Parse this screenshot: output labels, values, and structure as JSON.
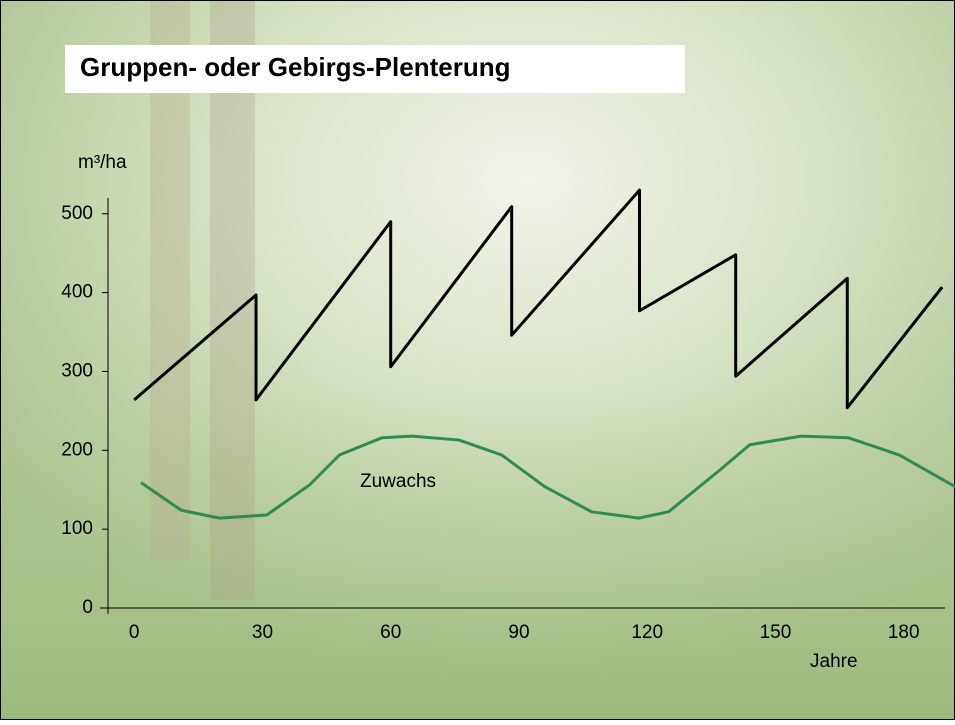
{
  "chart_data": {
    "type": "line",
    "title": "Gruppen- oder Gebirgs-Plenterung",
    "y_label": "m³/ha",
    "x_label": "Jahre",
    "annotation": "Zuwachs",
    "xlim": [
      -8,
      192
    ],
    "ylim": [
      0,
      520
    ],
    "xticks": [
      0,
      30,
      60,
      90,
      120,
      150,
      180
    ],
    "yticks": [
      0,
      100,
      200,
      300,
      400,
      500
    ],
    "series": [
      {
        "color": "#000000",
        "x": [
          0,
          28.5,
          28.5,
          60,
          60,
          88.3,
          88.3,
          118.2,
          118.2,
          140.7,
          140.7,
          166.8,
          166.8,
          189
        ],
        "values": [
          264,
          397,
          264,
          490,
          306,
          509,
          346,
          530,
          377,
          448,
          294,
          418,
          254,
          407
        ]
      },
      {
        "color": "#2e8b57",
        "x": [
          1.6,
          11,
          20,
          31,
          41,
          48,
          58,
          65,
          76,
          86,
          96,
          107,
          118,
          125,
          137,
          144,
          156,
          167,
          179,
          192
        ],
        "values": [
          159,
          124,
          114,
          118,
          156,
          194,
          216,
          218,
          213,
          194,
          154,
          122,
          114,
          122,
          175,
          207,
          218,
          216,
          194,
          154
        ]
      }
    ]
  }
}
